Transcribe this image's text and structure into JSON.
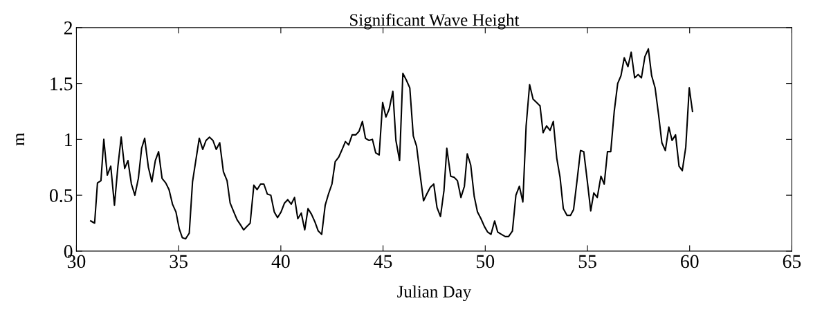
{
  "chart_data": {
    "type": "line",
    "title": "Significant Wave Height",
    "xlabel": "Julian Day",
    "ylabel": "m",
    "xlim": [
      30,
      65
    ],
    "xticks": [
      30,
      35,
      40,
      45,
      50,
      55,
      60,
      65
    ],
    "ylim": [
      0,
      2
    ],
    "yticks": [
      0,
      0.5,
      1,
      1.5,
      2
    ],
    "grid": false,
    "legend": false,
    "marker": "none",
    "line_style": "solid",
    "series": [
      {
        "color": "#000000",
        "x": [
          30.7,
          30.89,
          31.03,
          31.2,
          31.34,
          31.51,
          31.68,
          31.86,
          32.03,
          32.19,
          32.36,
          32.52,
          32.69,
          32.86,
          33.03,
          33.19,
          33.34,
          33.52,
          33.69,
          33.86,
          34.02,
          34.19,
          34.37,
          34.53,
          34.7,
          34.87,
          35.03,
          35.18,
          35.34,
          35.52,
          35.68,
          35.84,
          36.01,
          36.18,
          36.34,
          36.51,
          36.68,
          36.84,
          37.01,
          37.19,
          37.37,
          37.52,
          37.7,
          37.86,
          38.01,
          38.18,
          38.34,
          38.5,
          38.68,
          38.84,
          39.01,
          39.17,
          39.34,
          39.51,
          39.68,
          39.84,
          40.01,
          40.18,
          40.34,
          40.51,
          40.67,
          40.83,
          41.0,
          41.17,
          41.33,
          41.5,
          41.67,
          41.83,
          42.0,
          42.17,
          42.33,
          42.5,
          42.66,
          42.83,
          43.0,
          43.16,
          43.32,
          43.49,
          43.66,
          43.82,
          43.99,
          44.14,
          44.31,
          44.48,
          44.64,
          44.81,
          44.98,
          45.14,
          45.3,
          45.48,
          45.63,
          45.81,
          45.97,
          46.14,
          46.31,
          46.48,
          46.64,
          46.81,
          46.98,
          47.14,
          47.31,
          47.48,
          47.64,
          47.81,
          47.98,
          48.12,
          48.31,
          48.48,
          48.64,
          48.81,
          48.98,
          49.12,
          49.29,
          49.46,
          49.62,
          49.79,
          49.96,
          50.12,
          50.28,
          50.46,
          50.61,
          50.79,
          50.98,
          51.14,
          51.33,
          51.5,
          51.67,
          51.84,
          52.0,
          52.17,
          52.34,
          52.51,
          52.68,
          52.83,
          53.0,
          53.17,
          53.33,
          53.5,
          53.66,
          53.82,
          54.0,
          54.17,
          54.32,
          54.49,
          54.66,
          54.82,
          54.99,
          55.16,
          55.31,
          55.48,
          55.66,
          55.82,
          55.98,
          56.14,
          56.31,
          56.48,
          56.64,
          56.8,
          56.98,
          57.14,
          57.31,
          57.48,
          57.64,
          57.81,
          57.98,
          58.14,
          58.31,
          58.48,
          58.64,
          58.81,
          58.98,
          59.14,
          59.31,
          59.48,
          59.64,
          59.81,
          59.98,
          60.14
        ],
        "values": [
          0.27,
          0.25,
          0.61,
          0.63,
          1.0,
          0.68,
          0.76,
          0.41,
          0.76,
          1.02,
          0.74,
          0.81,
          0.6,
          0.5,
          0.65,
          0.92,
          1.01,
          0.75,
          0.62,
          0.81,
          0.89,
          0.65,
          0.61,
          0.55,
          0.42,
          0.35,
          0.2,
          0.12,
          0.11,
          0.16,
          0.62,
          0.81,
          1.01,
          0.91,
          0.99,
          1.02,
          0.99,
          0.91,
          0.97,
          0.71,
          0.63,
          0.43,
          0.35,
          0.28,
          0.24,
          0.19,
          0.22,
          0.25,
          0.59,
          0.55,
          0.6,
          0.6,
          0.51,
          0.5,
          0.35,
          0.3,
          0.35,
          0.43,
          0.46,
          0.42,
          0.48,
          0.29,
          0.34,
          0.19,
          0.38,
          0.33,
          0.26,
          0.18,
          0.15,
          0.41,
          0.51,
          0.6,
          0.8,
          0.84,
          0.91,
          0.98,
          0.95,
          1.04,
          1.04,
          1.07,
          1.16,
          1.01,
          0.99,
          1.0,
          0.88,
          0.86,
          1.33,
          1.2,
          1.27,
          1.43,
          0.99,
          0.81,
          1.59,
          1.53,
          1.46,
          1.03,
          0.94,
          0.69,
          0.45,
          0.51,
          0.57,
          0.6,
          0.39,
          0.31,
          0.54,
          0.92,
          0.67,
          0.66,
          0.63,
          0.48,
          0.58,
          0.87,
          0.77,
          0.49,
          0.35,
          0.29,
          0.22,
          0.17,
          0.15,
          0.27,
          0.17,
          0.15,
          0.13,
          0.13,
          0.18,
          0.5,
          0.58,
          0.44,
          1.12,
          1.49,
          1.36,
          1.33,
          1.3,
          1.06,
          1.12,
          1.08,
          1.16,
          0.83,
          0.66,
          0.38,
          0.32,
          0.32,
          0.37,
          0.63,
          0.9,
          0.89,
          0.63,
          0.36,
          0.52,
          0.48,
          0.67,
          0.6,
          0.89,
          0.89,
          1.25,
          1.5,
          1.57,
          1.73,
          1.65,
          1.78,
          1.55,
          1.58,
          1.55,
          1.74,
          1.81,
          1.57,
          1.46,
          1.22,
          0.97,
          0.9,
          1.11,
          0.99,
          1.04,
          0.76,
          0.72,
          0.93,
          1.46,
          1.25
        ]
      }
    ]
  }
}
